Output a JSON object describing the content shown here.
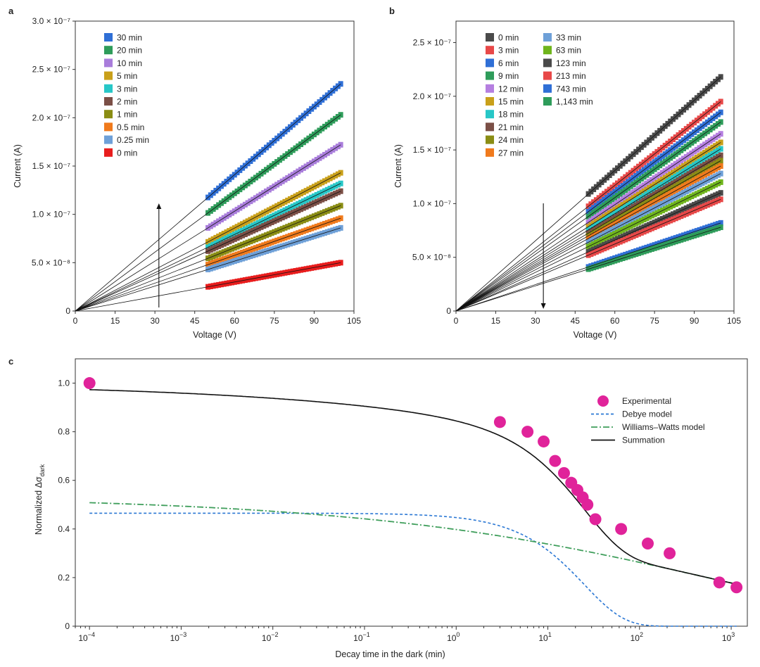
{
  "chart_data": [
    {
      "panel": "a",
      "type": "scatter",
      "xlabel": "Voltage (V)",
      "ylabel": "Current (A)",
      "xlim": [
        0,
        105
      ],
      "ylim": [
        0,
        3e-07
      ],
      "xticks": [
        "0",
        "15",
        "30",
        "45",
        "60",
        "75",
        "90",
        "105"
      ],
      "yticks": [
        "0",
        "5.0 × 10⁻⁸",
        "1.0 × 10⁻⁷",
        "1.5 × 10⁻⁷",
        "2.0 × 10⁻⁷",
        "2.5 × 10⁻⁷",
        "3.0 × 10⁻⁷"
      ],
      "x_range_points": [
        50,
        100
      ],
      "fit_lines_from_origin": true,
      "arrow": "up",
      "series": [
        {
          "name": "30 min",
          "color": "#2f6fd6",
          "slope": 2.35e-09
        },
        {
          "name": "20 min",
          "color": "#2e9c5a",
          "slope": 2.03e-09
        },
        {
          "name": "10 min",
          "color": "#a97ddb",
          "slope": 1.72e-09
        },
        {
          "name": "5 min",
          "color": "#c9a01a",
          "slope": 1.43e-09
        },
        {
          "name": "3 min",
          "color": "#27c7c7",
          "slope": 1.32e-09
        },
        {
          "name": "2 min",
          "color": "#7b4f46",
          "slope": 1.24e-09
        },
        {
          "name": "1 min",
          "color": "#8a8d14",
          "slope": 1.09e-09
        },
        {
          "name": "0.5 min",
          "color": "#f07a1c",
          "slope": 9.6e-10
        },
        {
          "name": "0.25 min",
          "color": "#6ea0d8",
          "slope": 8.6e-10
        },
        {
          "name": "0 min",
          "color": "#e81d1d",
          "slope": 5e-10
        }
      ]
    },
    {
      "panel": "b",
      "type": "scatter",
      "xlabel": "Voltage (V)",
      "ylabel": "Current (A)",
      "xlim": [
        0,
        105
      ],
      "ylim": [
        0,
        2.7e-07
      ],
      "xticks": [
        "0",
        "15",
        "30",
        "45",
        "60",
        "75",
        "90",
        "105"
      ],
      "yticks": [
        "0",
        "5.0 × 10⁻⁸",
        "1.0 × 10⁻⁷",
        "1.5 × 10⁻⁷",
        "2.0 × 10⁻⁷",
        "2.5 × 10⁻⁷"
      ],
      "x_range_points": [
        50,
        100
      ],
      "fit_lines_from_origin": true,
      "arrow": "down",
      "series": [
        {
          "name": "0 min",
          "color": "#4a4a4a",
          "slope": 2.18e-09
        },
        {
          "name": "3 min",
          "color": "#e84848",
          "slope": 1.95e-09
        },
        {
          "name": "6 min",
          "color": "#2f6fd6",
          "slope": 1.85e-09
        },
        {
          "name": "9 min",
          "color": "#2e9c5a",
          "slope": 1.76e-09
        },
        {
          "name": "12 min",
          "color": "#b57fe0",
          "slope": 1.65e-09
        },
        {
          "name": "15 min",
          "color": "#c9a01a",
          "slope": 1.57e-09
        },
        {
          "name": "18 min",
          "color": "#27c7c7",
          "slope": 1.51e-09
        },
        {
          "name": "21 min",
          "color": "#7b4f46",
          "slope": 1.45e-09
        },
        {
          "name": "24 min",
          "color": "#8a8d14",
          "slope": 1.4e-09
        },
        {
          "name": "27 min",
          "color": "#f07a1c",
          "slope": 1.35e-09
        },
        {
          "name": "33 min",
          "color": "#6ea0d8",
          "slope": 1.28e-09
        },
        {
          "name": "63 min",
          "color": "#6fb51c",
          "slope": 1.2e-09
        },
        {
          "name": "123 min",
          "color": "#4a4a4a",
          "slope": 1.1e-09
        },
        {
          "name": "213 min",
          "color": "#e84848",
          "slope": 1.04e-09
        },
        {
          "name": "743 min",
          "color": "#2f6fd6",
          "slope": 8.2e-10
        },
        {
          "name": "1,143 min",
          "color": "#2e9c5a",
          "slope": 7.8e-10
        }
      ]
    },
    {
      "panel": "c",
      "type": "line",
      "xlabel": "Decay time in the dark (min)",
      "ylabel": "Normalized Δσ",
      "ylabel_sub": "dark",
      "xscale": "log",
      "xlim": [
        7e-05,
        1500
      ],
      "ylim": [
        0,
        1.1
      ],
      "xticks": [
        0.0001,
        0.001,
        0.01,
        0.1,
        1,
        10,
        100,
        1000
      ],
      "xtick_mantissa": "10",
      "xtick_exponents": [
        "−4",
        "−3",
        "−2",
        "−1",
        "0",
        "1",
        "2",
        "3"
      ],
      "yticks": [
        "0",
        "0.2",
        "0.4",
        "0.6",
        "0.8",
        "1.0"
      ],
      "ytick_values": [
        0,
        0.2,
        0.4,
        0.6,
        0.8,
        1.0
      ],
      "legend": [
        "Experimental",
        "Debye model",
        "Williams–Watts model",
        "Summation"
      ],
      "colors": {
        "experimental": "#e0239a",
        "debye": "#2a77d4",
        "ww": "#3f9e5b",
        "sum": "#111111"
      },
      "experimental": [
        {
          "x": 0.0001,
          "y": 1.0
        },
        {
          "x": 3,
          "y": 0.84
        },
        {
          "x": 6,
          "y": 0.8
        },
        {
          "x": 9,
          "y": 0.76
        },
        {
          "x": 12,
          "y": 0.68
        },
        {
          "x": 15,
          "y": 0.63
        },
        {
          "x": 18,
          "y": 0.59
        },
        {
          "x": 21,
          "y": 0.56
        },
        {
          "x": 24,
          "y": 0.53
        },
        {
          "x": 27,
          "y": 0.5
        },
        {
          "x": 33,
          "y": 0.44
        },
        {
          "x": 63,
          "y": 0.4
        },
        {
          "x": 123,
          "y": 0.34
        },
        {
          "x": 213,
          "y": 0.3
        },
        {
          "x": 743,
          "y": 0.18
        },
        {
          "x": 1143,
          "y": 0.16
        }
      ],
      "debye": {
        "amplitude": 0.465,
        "tau": 25
      },
      "williams_watts": {
        "amplitude": 0.535,
        "tau": 600,
        "beta": 0.19
      }
    }
  ]
}
